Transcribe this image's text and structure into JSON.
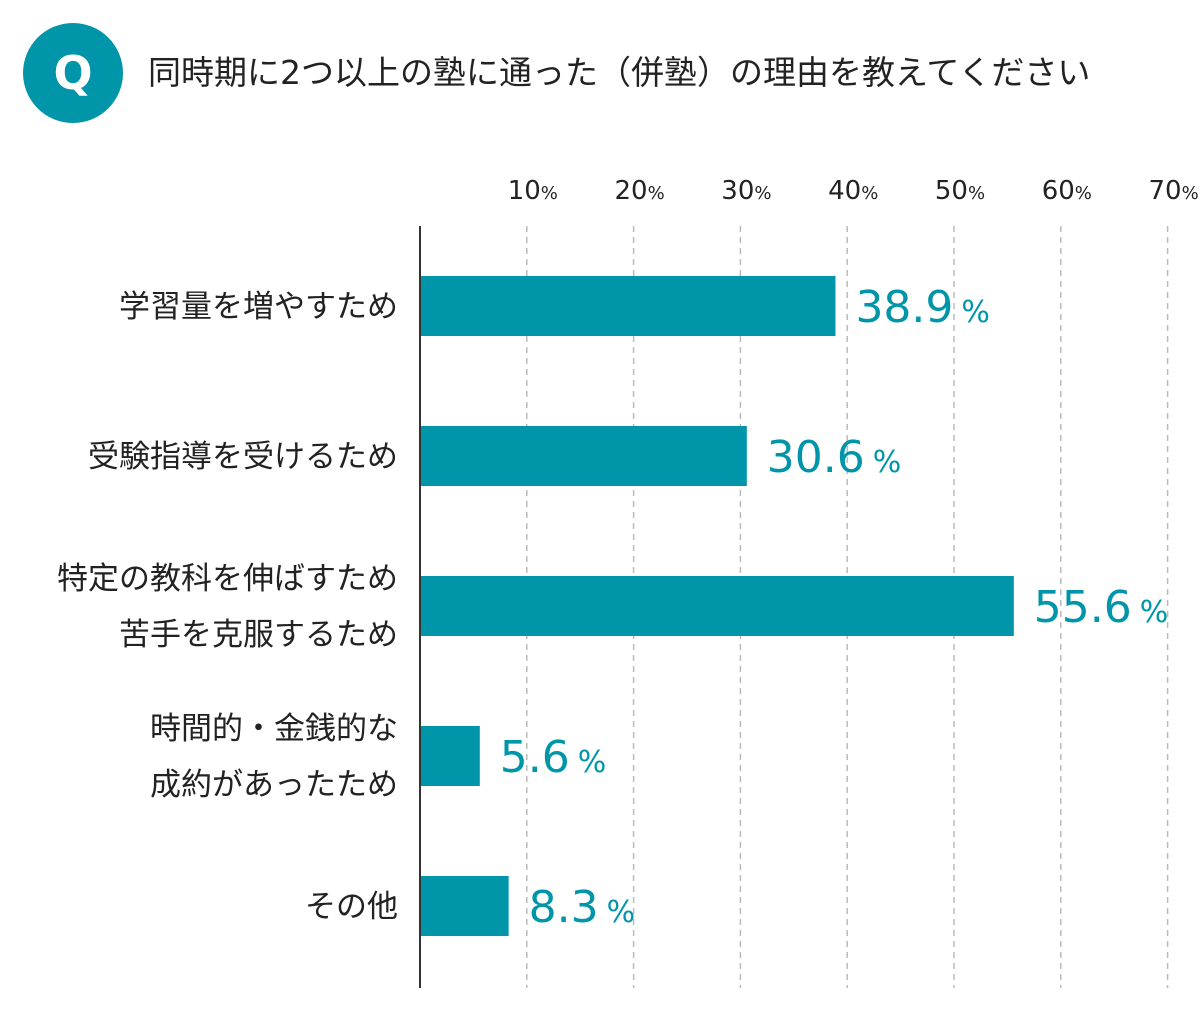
{
  "header": {
    "badge": "Q",
    "title": "同時期に2つ以上の塾に通った（併塾）の理由を教えてください"
  },
  "colors": {
    "accent": "#0095A8",
    "axis": "#333333",
    "grid": "#BBBBBB"
  },
  "chart_data": {
    "type": "bar",
    "orientation": "horizontal",
    "title": "",
    "xlabel": "",
    "ylabel": "",
    "unit": "%",
    "xlim": [
      0,
      70
    ],
    "grid": true,
    "ticks": [
      {
        "value": 10,
        "label": "10"
      },
      {
        "value": 20,
        "label": "20"
      },
      {
        "value": 30,
        "label": "30"
      },
      {
        "value": 40,
        "label": "40"
      },
      {
        "value": 50,
        "label": "50"
      },
      {
        "value": 60,
        "label": "60"
      },
      {
        "value": 70,
        "label": "70"
      }
    ],
    "categories": [
      [
        "学習量を増やすため"
      ],
      [
        "受験指導を受けるため"
      ],
      [
        "特定の教科を伸ばすため",
        "苦手を克服するため"
      ],
      [
        "時間的・金銭的な",
        "成約があったため"
      ],
      [
        "その他"
      ]
    ],
    "values": [
      38.9,
      30.6,
      55.6,
      5.6,
      8.3
    ],
    "value_labels": [
      "38.9",
      "30.6",
      "55.6",
      "5.6",
      "8.3"
    ]
  }
}
